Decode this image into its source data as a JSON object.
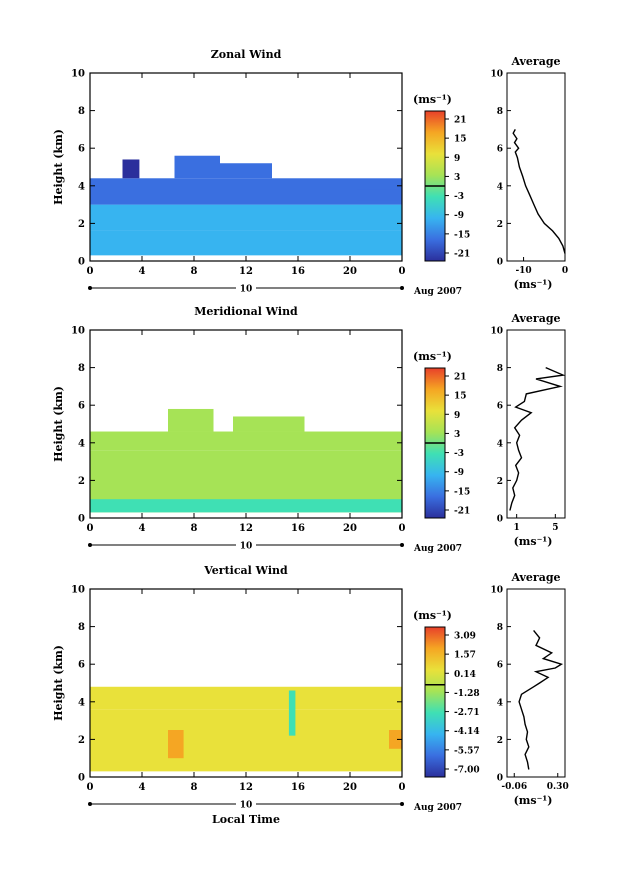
{
  "chart_data": [
    {
      "type": "heatmap",
      "title": "Zonal Wind",
      "ylabel": "Height (km)",
      "xlabel": "",
      "xlim": [
        0,
        24
      ],
      "ylim": [
        0,
        10
      ],
      "x_ticks": [
        "0",
        "4",
        "8",
        "12",
        "16",
        "20",
        "0"
      ],
      "y_ticks": [
        "0",
        "2",
        "4",
        "6",
        "8",
        "10"
      ],
      "date_day": "10",
      "date_label": "Aug 2007",
      "colorbar": {
        "unit": "(ms⁻¹)",
        "ticks": [
          "21",
          "15",
          "9",
          "3",
          "-3",
          "-9",
          "-15",
          "-21"
        ],
        "zero_line_index": 3.5
      },
      "regions": [
        {
          "t0": 0.0,
          "t1": 24.0,
          "h0": 0.3,
          "h1": 1.6,
          "value": -7
        },
        {
          "t0": 0.0,
          "t1": 24.0,
          "h0": 1.6,
          "h1": 3.0,
          "value": -11
        },
        {
          "t0": 0.0,
          "t1": 24.0,
          "h0": 3.0,
          "h1": 4.4,
          "value": -17
        },
        {
          "t0": 2.5,
          "t1": 3.8,
          "h0": 4.4,
          "h1": 5.4,
          "value": -20
        },
        {
          "t0": 6.5,
          "t1": 10.0,
          "h0": 4.4,
          "h1": 5.6,
          "value": -18
        },
        {
          "t0": 10.0,
          "t1": 14.0,
          "h0": 4.4,
          "h1": 5.2,
          "value": -17
        },
        {
          "t0": 20.5,
          "t1": 24.0,
          "h0": 3.2,
          "h1": 3.8,
          "value": -16
        }
      ],
      "profile": {
        "title": "Average",
        "xlabel": "(ms⁻¹)",
        "x_ticks": [
          "-10",
          "0"
        ],
        "xlim": [
          -14,
          0
        ],
        "x": [
          0.0,
          -0.5,
          -1.5,
          -3.0,
          -5.0,
          -6.5,
          -7.5,
          -8.5,
          -9.5,
          -10.2,
          -11.0,
          -11.5,
          -12.0,
          -11.2,
          -12.2,
          -11.6,
          -12.5,
          -12.0
        ],
        "y": [
          0.4,
          0.8,
          1.2,
          1.6,
          2.0,
          2.5,
          3.0,
          3.5,
          4.0,
          4.5,
          5.0,
          5.5,
          5.8,
          6.0,
          6.3,
          6.5,
          6.8,
          7.0
        ]
      }
    },
    {
      "type": "heatmap",
      "title": "Meridional Wind",
      "ylabel": "Height (km)",
      "xlabel": "",
      "xlim": [
        0,
        24
      ],
      "ylim": [
        0,
        10
      ],
      "x_ticks": [
        "0",
        "4",
        "8",
        "12",
        "16",
        "20",
        "0"
      ],
      "y_ticks": [
        "0",
        "2",
        "4",
        "6",
        "8",
        "10"
      ],
      "date_day": "10",
      "date_label": "Aug 2007",
      "colorbar": {
        "unit": "(ms⁻¹)",
        "ticks": [
          "21",
          "15",
          "9",
          "3",
          "-3",
          "-9",
          "-15",
          "-21"
        ],
        "zero_line_index": 3.5
      },
      "regions": [
        {
          "t0": 0.0,
          "t1": 24.0,
          "h0": 0.3,
          "h1": 3.6,
          "value": 1
        },
        {
          "t0": 0.0,
          "t1": 24.0,
          "h0": 3.6,
          "h1": 4.6,
          "value": 2
        },
        {
          "t0": 6.0,
          "t1": 9.5,
          "h0": 4.6,
          "h1": 5.8,
          "value": 3
        },
        {
          "t0": 11.0,
          "t1": 16.5,
          "h0": 4.6,
          "h1": 5.4,
          "value": 2
        },
        {
          "t0": 7.0,
          "t1": 9.5,
          "h0": 1.0,
          "h1": 3.0,
          "value": 5
        },
        {
          "t0": 14.0,
          "t1": 17.0,
          "h0": 2.0,
          "h1": 3.0,
          "value": 4
        },
        {
          "t0": 0.0,
          "t1": 24.0,
          "h0": 0.3,
          "h1": 1.0,
          "value": -2
        }
      ],
      "profile": {
        "title": "Average",
        "xlabel": "(ms⁻¹)",
        "x_ticks": [
          "1",
          "5"
        ],
        "xlim": [
          0,
          6
        ],
        "x": [
          0.3,
          0.5,
          0.8,
          0.6,
          1.0,
          1.2,
          0.9,
          1.5,
          1.2,
          1.0,
          1.3,
          0.8,
          1.5,
          2.5,
          0.9,
          1.8,
          2.0,
          5.5,
          3.0,
          5.8,
          4.0
        ],
        "y": [
          0.4,
          0.8,
          1.2,
          1.6,
          2.0,
          2.4,
          2.8,
          3.2,
          3.6,
          4.0,
          4.4,
          4.8,
          5.2,
          5.6,
          5.9,
          6.2,
          6.6,
          7.0,
          7.4,
          7.6,
          8.0
        ]
      }
    },
    {
      "type": "heatmap",
      "title": "Vertical Wind",
      "ylabel": "Height (km)",
      "xlabel": "Local Time",
      "xlim": [
        0,
        24
      ],
      "ylim": [
        0,
        10
      ],
      "x_ticks": [
        "0",
        "4",
        "8",
        "12",
        "16",
        "20",
        "0"
      ],
      "y_ticks": [
        "0",
        "2",
        "4",
        "6",
        "8",
        "10"
      ],
      "date_day": "10",
      "date_label": "Aug 2007",
      "colorbar": {
        "unit": "(ms⁻¹)",
        "ticks": [
          "3.09",
          "1.57",
          "0.14",
          "-1.28",
          "-2.71",
          "-4.14",
          "-5.57",
          "-7.00"
        ],
        "zero_line_index": 2.6
      },
      "regions": [
        {
          "t0": 0.0,
          "t1": 24.0,
          "h0": 0.3,
          "h1": 3.6,
          "value": 0.6
        },
        {
          "t0": 0.0,
          "t1": 24.0,
          "h0": 3.6,
          "h1": 4.8,
          "value": 0.8
        },
        {
          "t0": 6.0,
          "t1": 7.2,
          "h0": 1.0,
          "h1": 2.5,
          "value": 2.2
        },
        {
          "t0": 15.3,
          "t1": 15.8,
          "h0": 2.2,
          "h1": 4.6,
          "value": -2.6
        },
        {
          "t0": 23.0,
          "t1": 24.0,
          "h0": 1.5,
          "h1": 2.5,
          "value": 1.4
        }
      ],
      "profile": {
        "title": "Average",
        "xlabel": "(ms⁻¹)",
        "x_ticks": [
          "-0.06",
          "0.30"
        ],
        "xlim": [
          -0.12,
          0.36
        ],
        "x": [
          0.06,
          0.05,
          0.03,
          0.06,
          0.04,
          0.05,
          0.03,
          0.02,
          0.0,
          -0.02,
          0.0,
          0.1,
          0.15,
          0.22,
          0.12,
          0.28,
          0.33,
          0.18,
          0.25,
          0.12,
          0.15,
          0.1
        ],
        "y": [
          0.4,
          0.8,
          1.2,
          1.6,
          2.0,
          2.4,
          2.8,
          3.2,
          3.6,
          4.0,
          4.4,
          4.8,
          5.0,
          5.3,
          5.6,
          5.8,
          6.0,
          6.3,
          6.6,
          7.0,
          7.4,
          7.8
        ]
      }
    }
  ]
}
